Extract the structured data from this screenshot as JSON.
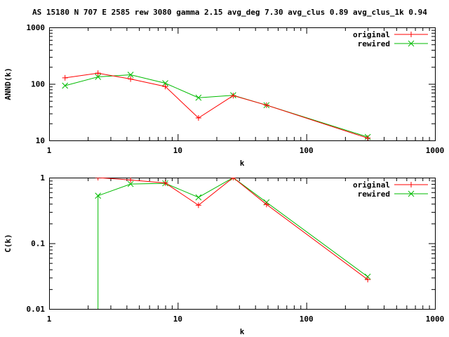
{
  "title": "AS 15180 N 707 E 2585 rew 3080 gamma 2.15 avg_deg 7.30 avg_clus 0.89 avg_clus_1k 0.94",
  "colors": {
    "original": "#ff0000",
    "rewired": "#00bb00",
    "frame": "#000000"
  },
  "chart_data": [
    {
      "type": "line",
      "xlabel": "k",
      "ylabel": "ANND(k)",
      "xscale": "log",
      "yscale": "log",
      "xlim": [
        1,
        1000
      ],
      "ylim": [
        10,
        1000
      ],
      "xticks": [
        1,
        10,
        100,
        1000
      ],
      "xtick_labels": [
        "1",
        "10",
        "100",
        "1000"
      ],
      "yticks": [
        10,
        100,
        1000
      ],
      "ytick_labels": [
        "10",
        "100",
        "1000"
      ],
      "grid": false,
      "legend": "top-right",
      "series": [
        {
          "name": "original",
          "marker": "plus",
          "x": [
            1.33,
            2.4,
            4.3,
            8,
            14.5,
            27,
            49,
            300
          ],
          "y": [
            128,
            155,
            122,
            90,
            25,
            62,
            42,
            11
          ]
        },
        {
          "name": "rewired",
          "marker": "x",
          "x": [
            1.33,
            2.4,
            4.3,
            8,
            14.5,
            27,
            49,
            300
          ],
          "y": [
            93,
            133,
            145,
            103,
            57,
            63,
            42,
            11.5
          ]
        }
      ]
    },
    {
      "type": "line",
      "xlabel": "k",
      "ylabel": "C(k)",
      "xscale": "log",
      "yscale": "log",
      "xlim": [
        1,
        1000
      ],
      "ylim": [
        0.01,
        1
      ],
      "xticks": [
        1,
        10,
        100,
        1000
      ],
      "xtick_labels": [
        "1",
        "10",
        "100",
        "1000"
      ],
      "yticks": [
        0.01,
        0.1,
        1
      ],
      "ytick_labels": [
        "0.01",
        "0.1",
        "1"
      ],
      "grid": false,
      "legend": "top-right",
      "series": [
        {
          "name": "original",
          "marker": "plus",
          "x": [
            2.4,
            4.3,
            8,
            14.5,
            27,
            49,
            300
          ],
          "y": [
            1,
            0.92,
            0.83,
            0.38,
            1,
            0.39,
            0.028
          ],
          "drop_from_bottom": false
        },
        {
          "name": "rewired",
          "marker": "x",
          "x": [
            2.4,
            4.3,
            8,
            14.5,
            27,
            49,
            300
          ],
          "y": [
            0.53,
            0.8,
            0.82,
            0.5,
            1,
            0.42,
            0.031
          ],
          "drop_from_bottom": true
        }
      ]
    }
  ]
}
